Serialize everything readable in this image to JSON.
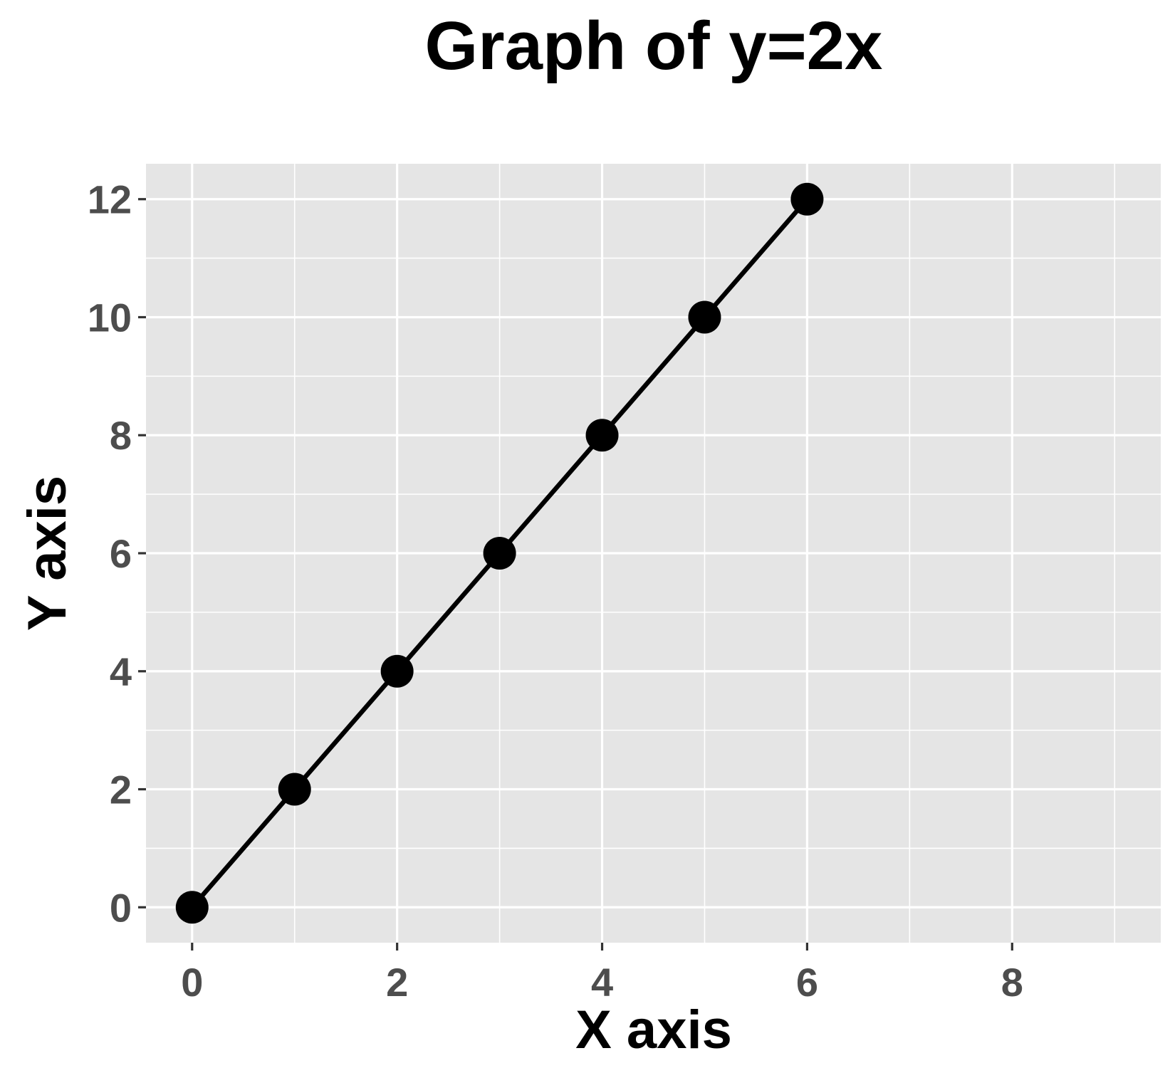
{
  "chart_data": {
    "type": "line",
    "title": "Graph of y=2x",
    "xlabel": "X axis",
    "ylabel": "Y axis",
    "x": [
      0,
      1,
      2,
      3,
      4,
      5,
      6
    ],
    "series": [
      {
        "values": [
          0,
          2,
          4,
          6,
          8,
          10,
          12
        ]
      }
    ],
    "xlim": [
      -0.45,
      9.45
    ],
    "ylim": [
      -0.6,
      12.6
    ],
    "x_ticks": [
      "0",
      "2",
      "4",
      "6",
      "8"
    ],
    "y_ticks": [
      "0",
      "2",
      "4",
      "6",
      "8",
      "10",
      "12"
    ],
    "markers": true,
    "grid": true,
    "legend": "none",
    "colors": {
      "panel_background": "#e5e5e5",
      "grid": "#ffffff",
      "line": "#000000",
      "points": "#000000",
      "tick_label": "#4d4d4d",
      "title": "#000000"
    }
  }
}
